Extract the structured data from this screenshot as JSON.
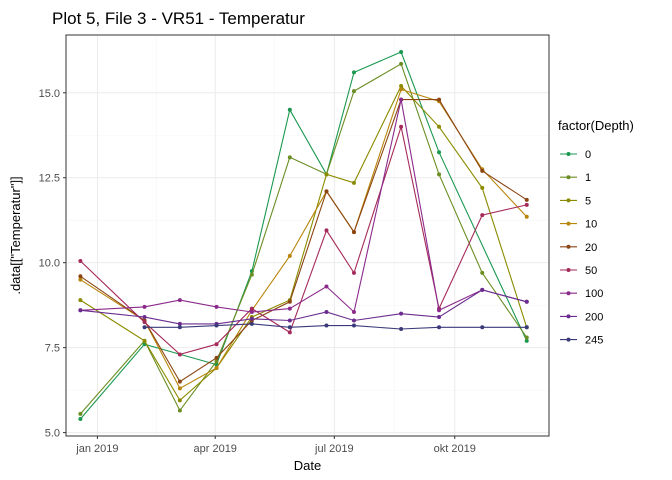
{
  "chart_data": {
    "type": "line",
    "title": "Plot 5, File 3 - VR51  -  Temperatur",
    "xlabel": "Date",
    "ylabel": ".data[[\"Temperatur\"]]",
    "legend_title": "factor(Depth)",
    "legend_position": "right",
    "grid": true,
    "x_type": "date",
    "xlim": [
      "2018-12-08",
      "2019-12-12"
    ],
    "ylim": [
      4.9,
      16.7
    ],
    "x_ticks": [
      {
        "date": "2019-01-01",
        "label": "jan 2019"
      },
      {
        "date": "2019-04-01",
        "label": "apr 2019"
      },
      {
        "date": "2019-07-01",
        "label": "jul 2019"
      },
      {
        "date": "2019-10-01",
        "label": "okt 2019"
      }
    ],
    "y_ticks": [
      5.0,
      7.5,
      10.0,
      12.5,
      15.0
    ],
    "y_tick_labels": [
      "5.0",
      "7.5",
      "10.0",
      "12.5",
      "15.0"
    ],
    "x": [
      "2018-12-19",
      "2019-02-06",
      "2019-03-05",
      "2019-04-02",
      "2019-04-29",
      "2019-05-28",
      "2019-06-25",
      "2019-07-16",
      "2019-08-21",
      "2019-09-19",
      "2019-10-22",
      "2019-11-25"
    ],
    "series": [
      {
        "name": "0",
        "color": "#1a9850",
        "values": [
          5.4,
          7.6,
          null,
          7.0,
          9.75,
          14.5,
          12.6,
          15.6,
          16.2,
          13.25,
          null,
          7.7
        ]
      },
      {
        "name": "1",
        "color": "#6b8e23",
        "values": [
          5.55,
          7.7,
          5.65,
          7.1,
          9.65,
          13.1,
          12.6,
          15.05,
          15.85,
          12.6,
          9.7,
          7.8
        ]
      },
      {
        "name": "5",
        "color": "#8b8b00",
        "values": [
          8.9,
          7.7,
          5.95,
          6.9,
          8.4,
          8.9,
          12.6,
          12.35,
          15.2,
          14.0,
          12.2,
          8.1
        ]
      },
      {
        "name": "10",
        "color": "#b8860b",
        "values": [
          9.5,
          8.3,
          6.3,
          6.9,
          8.6,
          10.2,
          12.1,
          10.9,
          15.1,
          14.75,
          12.75,
          11.35
        ]
      },
      {
        "name": "20",
        "color": "#8b4513",
        "values": [
          9.6,
          8.3,
          6.5,
          7.2,
          8.3,
          8.85,
          12.1,
          10.9,
          14.8,
          14.8,
          12.7,
          11.85
        ]
      },
      {
        "name": "50",
        "color": "#a52a5a",
        "values": [
          10.05,
          8.25,
          7.3,
          7.6,
          8.65,
          7.95,
          10.95,
          9.7,
          14.0,
          8.65,
          11.4,
          11.7
        ]
      },
      {
        "name": "100",
        "color": "#8b2a8b",
        "values": [
          8.6,
          8.7,
          8.9,
          8.7,
          8.55,
          8.65,
          9.3,
          8.55,
          14.8,
          8.6,
          9.2,
          8.85
        ]
      },
      {
        "name": "200",
        "color": "#6a2c8f",
        "values": [
          8.6,
          8.4,
          8.2,
          8.2,
          8.35,
          8.3,
          8.55,
          8.3,
          8.5,
          8.4,
          9.2,
          8.85
        ]
      },
      {
        "name": "245",
        "color": "#3a3a7a",
        "values": [
          null,
          8.1,
          8.1,
          8.15,
          8.2,
          8.1,
          8.15,
          8.15,
          8.05,
          8.1,
          8.1,
          8.1
        ]
      }
    ]
  }
}
